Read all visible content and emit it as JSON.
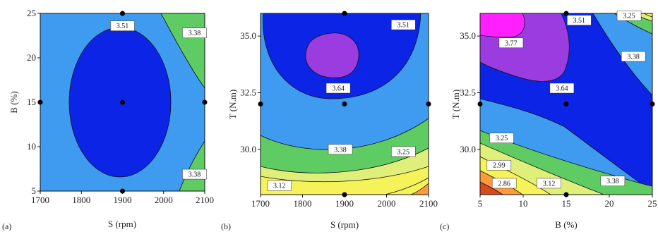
{
  "colors": {
    "c286": "#d84a1a",
    "c299": "#ff9a3a",
    "c312": "#f6f25a",
    "c325": "#e0ef7a",
    "c338": "#5ecb63",
    "c351": "#3e9bf0",
    "c364": "#0b24e6",
    "c377": "#9b3ce0",
    "c390": "#ff1fff",
    "line": "#111111",
    "point": "#000000"
  },
  "chart_data": [
    {
      "type": "contour",
      "panel_label": "(a)",
      "xlabel": "S (rpm)",
      "ylabel": "B (%)",
      "xlim": [
        1700,
        2100
      ],
      "ylim": [
        5,
        25
      ],
      "xticks": [
        "1700",
        "1800",
        "1900",
        "2000",
        "2100"
      ],
      "yticks": [
        "5",
        "10",
        "15",
        "20",
        "25"
      ],
      "contour_labels": [
        {
          "text": "3.51",
          "x": 1900,
          "y": 23.6
        },
        {
          "text": "3.38",
          "x": 2075,
          "y": 22.8
        },
        {
          "text": "3.38",
          "x": 2075,
          "y": 6.9
        }
      ],
      "design_points": [
        [
          1700,
          15
        ],
        [
          1900,
          15
        ],
        [
          2100,
          15
        ],
        [
          1900,
          5
        ],
        [
          1900,
          25
        ]
      ]
    },
    {
      "type": "contour",
      "panel_label": "(b)",
      "xlabel": "S (rpm)",
      "ylabel": "T (N.m)",
      "xlim": [
        1700,
        2100
      ],
      "ylim": [
        28,
        36
      ],
      "xticks": [
        "1700",
        "1800",
        "1900",
        "2000",
        "2100"
      ],
      "yticks": [
        "30.0",
        "32.5",
        "35.0"
      ],
      "contour_labels": [
        {
          "text": "3.51",
          "x": 2040,
          "y": 35.5
        },
        {
          "text": "3.64",
          "x": 1885,
          "y": 32.7
        },
        {
          "text": "3.38",
          "x": 1890,
          "y": 30.0
        },
        {
          "text": "3.25",
          "x": 2040,
          "y": 29.9
        },
        {
          "text": "3.12",
          "x": 1745,
          "y": 28.4
        }
      ],
      "design_points": [
        [
          1700,
          32
        ],
        [
          1900,
          32
        ],
        [
          2100,
          32
        ],
        [
          1900,
          28
        ],
        [
          1900,
          36
        ]
      ]
    },
    {
      "type": "contour",
      "panel_label": "(c)",
      "xlabel": "B (%)",
      "ylabel": "T (N.m)",
      "xlim": [
        5,
        25
      ],
      "ylim": [
        28,
        36
      ],
      "xticks": [
        "5",
        "10",
        "15",
        "20",
        "25"
      ],
      "yticks": [
        "30.0",
        "32.5",
        "35.0"
      ],
      "contour_labels": [
        {
          "text": "3.77",
          "x": 8.6,
          "y": 34.7
        },
        {
          "text": "3.51",
          "x": 16.5,
          "y": 35.7
        },
        {
          "text": "3.25",
          "x": 22.3,
          "y": 35.9
        },
        {
          "text": "3.38",
          "x": 22.8,
          "y": 34.1
        },
        {
          "text": "3.64",
          "x": 14.5,
          "y": 32.7
        },
        {
          "text": "3.25",
          "x": 7.5,
          "y": 30.5
        },
        {
          "text": "2.99",
          "x": 7.2,
          "y": 29.3
        },
        {
          "text": "2.86",
          "x": 7.8,
          "y": 28.5
        },
        {
          "text": "3.12",
          "x": 13.0,
          "y": 28.5
        },
        {
          "text": "3.38",
          "x": 20.4,
          "y": 28.6
        }
      ],
      "design_points": [
        [
          5,
          32
        ],
        [
          15,
          32
        ],
        [
          25,
          32
        ],
        [
          15,
          28
        ],
        [
          15,
          36
        ]
      ]
    }
  ]
}
